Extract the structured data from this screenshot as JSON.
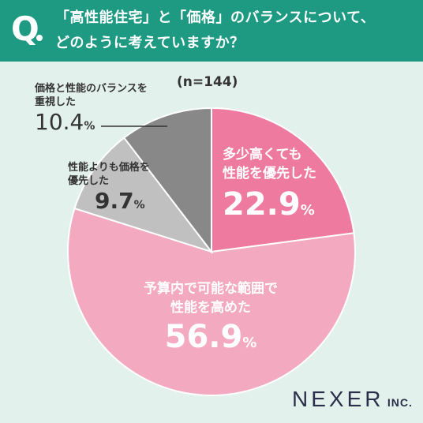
{
  "header": {
    "q_mark": "Q",
    "question_line1": "「高性能住宅」と「価格」のバランスについて、",
    "question_line2": "どのように考えていますか？"
  },
  "sample_label": "(n=144)",
  "logo": {
    "main": "NEXER",
    "inc": "INC."
  },
  "colors": {
    "header_bg": "#1e9a83",
    "background": "#e3f1ec",
    "performance_priority": "#ef7aa0",
    "within_budget": "#f3a9c0",
    "balance": "#888888",
    "price_priority": "#c0c0c0"
  },
  "chart_data": {
    "type": "pie",
    "title": "「高性能住宅」と「価格」のバランスについて、どのように考えていますか？",
    "n": 144,
    "start": "12 o'clock, clockwise",
    "slices": [
      {
        "label": "多少高くても性能を優先した",
        "label_lines": [
          "多少高くても",
          "性能を優先した"
        ],
        "value": 22.9,
        "value_text": "22.9",
        "unit": "%",
        "color": "#ef7aa0"
      },
      {
        "label": "予算内で可能な範囲で性能を高めた",
        "label_lines": [
          "予算内で可能な範囲で",
          "性能を高めた"
        ],
        "value": 56.9,
        "value_text": "56.9",
        "unit": "%",
        "color": "#f3a9c0"
      },
      {
        "label": "性能よりも価格を優先した",
        "label_lines": [
          "性能よりも価格を",
          "優先した"
        ],
        "value": 9.7,
        "value_text": "9.7",
        "unit": "%",
        "color": "#c0c0c0"
      },
      {
        "label": "価格と性能のバランスを重視した",
        "label_lines": [
          "価格と性能のバランスを",
          "重視した"
        ],
        "value": 10.4,
        "value_text": "10.4",
        "unit": "%",
        "color": "#888888"
      }
    ]
  }
}
